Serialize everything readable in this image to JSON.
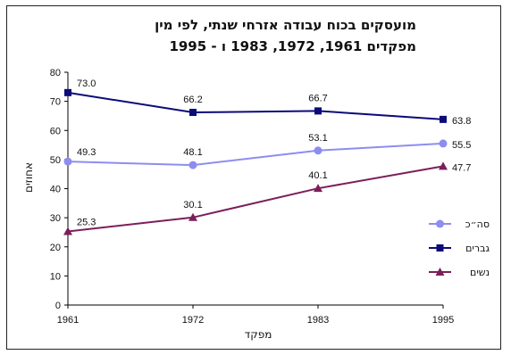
{
  "chart_data": {
    "type": "line",
    "title_line1": "מועסקים בכוח עבודה אזרחי שנתי, לפי מין",
    "title_line2": "מפקדים 1961, 1972, 1983 ו - 1995",
    "xlabel": "מפקד",
    "ylabel": "אחוזים",
    "categories": [
      "1961",
      "1972",
      "1983",
      "1995"
    ],
    "ylim": [
      0,
      80
    ],
    "yticks": [
      0,
      10,
      20,
      30,
      40,
      50,
      60,
      70,
      80
    ],
    "grid": false,
    "legend_position": "right",
    "series": [
      {
        "name": "סה״כ",
        "values": [
          49.3,
          48.1,
          53.1,
          55.5
        ],
        "labels": [
          "49.3",
          "48.1",
          "53.1",
          "55.5"
        ],
        "color": "#8d8df0",
        "marker": "circle"
      },
      {
        "name": "גברים",
        "values": [
          73.0,
          66.2,
          66.7,
          63.8
        ],
        "labels": [
          "73.0",
          "66.2",
          "66.7",
          "63.8"
        ],
        "color": "#0b0b7a",
        "marker": "square"
      },
      {
        "name": "נשים",
        "values": [
          25.3,
          30.1,
          40.1,
          47.7
        ],
        "labels": [
          "25.3",
          "30.1",
          "40.1",
          "47.7"
        ],
        "color": "#7b1f5a",
        "marker": "triangle"
      }
    ]
  }
}
